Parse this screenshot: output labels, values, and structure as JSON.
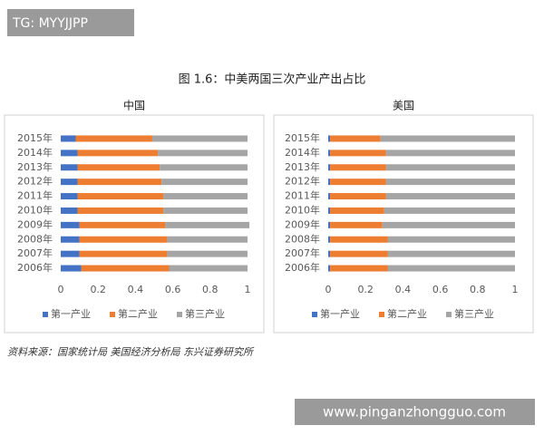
{
  "watermark": "TG: MYYJJPP",
  "figure_title": "图 1.6：中美两国三次产业产出占比",
  "source": "资料来源：国家统计局 美国经济分析局   东兴证券研究所",
  "website": "www.pinganzhongguo.com",
  "chart_data": [
    {
      "type": "bar",
      "orientation": "horizontal",
      "stacked": true,
      "title": "中国",
      "categories": [
        "2006年",
        "2007年",
        "2008年",
        "2009年",
        "2010年",
        "2011年",
        "2012年",
        "2013年",
        "2014年",
        "2015年"
      ],
      "series": [
        {
          "name": "第一产业",
          "color": "#4472c4",
          "values": [
            0.11,
            0.1,
            0.1,
            0.1,
            0.09,
            0.09,
            0.09,
            0.09,
            0.09,
            0.08
          ]
        },
        {
          "name": "第二产业",
          "color": "#ed7d31",
          "values": [
            0.47,
            0.47,
            0.47,
            0.46,
            0.46,
            0.46,
            0.45,
            0.44,
            0.43,
            0.41
          ]
        },
        {
          "name": "第三产业",
          "color": "#a5a5a5",
          "values": [
            0.42,
            0.43,
            0.43,
            0.45,
            0.45,
            0.45,
            0.46,
            0.47,
            0.48,
            0.51
          ]
        }
      ],
      "xlim": [
        0,
        1
      ],
      "xticks": [
        0,
        0.2,
        0.4,
        0.6,
        0.8,
        1
      ],
      "legend": "bottom"
    },
    {
      "type": "bar",
      "orientation": "horizontal",
      "stacked": true,
      "title": "美国",
      "categories": [
        "2006年",
        "2007年",
        "2008年",
        "2009年",
        "2010年",
        "2011年",
        "2012年",
        "2013年",
        "2014年",
        "2015年"
      ],
      "series": [
        {
          "name": "第一产业",
          "color": "#4472c4",
          "values": [
            0.01,
            0.01,
            0.01,
            0.01,
            0.01,
            0.01,
            0.01,
            0.01,
            0.01,
            0.01
          ]
        },
        {
          "name": "第二产业",
          "color": "#ed7d31",
          "values": [
            0.31,
            0.31,
            0.31,
            0.28,
            0.29,
            0.3,
            0.3,
            0.3,
            0.3,
            0.27
          ]
        },
        {
          "name": "第三产业",
          "color": "#a5a5a5",
          "values": [
            0.68,
            0.68,
            0.68,
            0.71,
            0.7,
            0.69,
            0.69,
            0.69,
            0.69,
            0.72
          ]
        }
      ],
      "xlim": [
        0,
        1
      ],
      "xticks": [
        0,
        0.2,
        0.4,
        0.6,
        0.8,
        1
      ],
      "legend": "bottom"
    }
  ]
}
